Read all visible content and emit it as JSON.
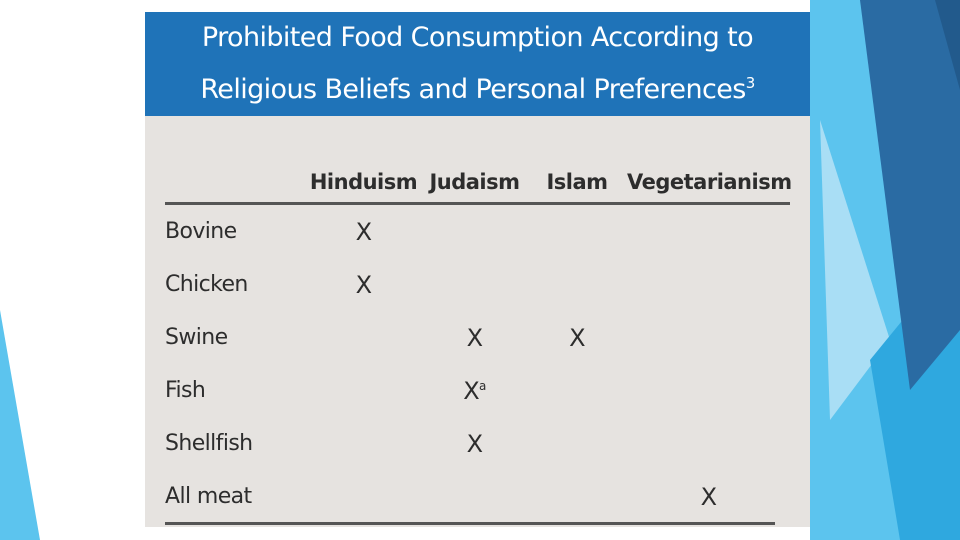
{
  "colors": {
    "banner": "#1f73b8",
    "card": "#e6e3e0",
    "accent_light": "#5cc4ee",
    "accent_dark": "#2a6ba3"
  },
  "table": {
    "title_line1": "Prohibited Food Consumption According to",
    "title_line2": "Religious Beliefs and Personal Preferences",
    "title_footnote": "3",
    "columns": [
      "Hinduism",
      "Judaism",
      "Islam",
      "Vegetarianism"
    ],
    "rows": [
      {
        "label": "Bovine",
        "cells": [
          "X",
          "",
          "",
          ""
        ]
      },
      {
        "label": "Chicken",
        "cells": [
          "X",
          "",
          "",
          ""
        ]
      },
      {
        "label": "Swine",
        "cells": [
          "",
          "X",
          "X",
          ""
        ]
      },
      {
        "label": "Fish",
        "cells": [
          "",
          "X",
          "",
          ""
        ],
        "footnote": "a"
      },
      {
        "label": "Shellfish",
        "cells": [
          "",
          "X",
          "",
          ""
        ]
      },
      {
        "label": "All meat",
        "cells": [
          "",
          "",
          "",
          "X"
        ]
      }
    ]
  }
}
